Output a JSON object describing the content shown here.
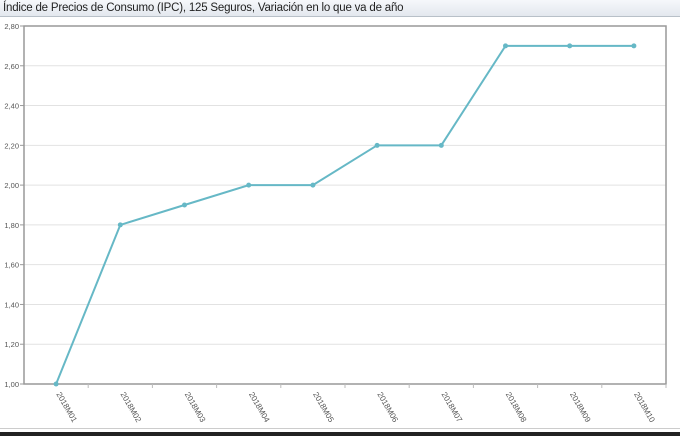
{
  "chart_data": {
    "type": "line",
    "title": "Índice de Precios de Consumo (IPC), 125 Seguros, Variación en lo que va de año",
    "categories": [
      "2018M01",
      "2018M02",
      "2018M03",
      "2018M04",
      "2018M05",
      "2018M06",
      "2018M07",
      "2018M08",
      "2018M09",
      "2018M10"
    ],
    "series": [
      {
        "values": [
          1.0,
          1.8,
          1.9,
          2.0,
          2.0,
          2.2,
          2.2,
          2.7,
          2.7,
          2.7
        ],
        "color": "#66b8c6"
      }
    ],
    "ylim": [
      1.0,
      2.8
    ],
    "yticks": [
      "1,00",
      "1,20",
      "1,40",
      "1,60",
      "1,80",
      "2,00",
      "2,20",
      "2,40",
      "2,60",
      "2,80"
    ],
    "grid": true,
    "xlabel": "",
    "ylabel": ""
  }
}
